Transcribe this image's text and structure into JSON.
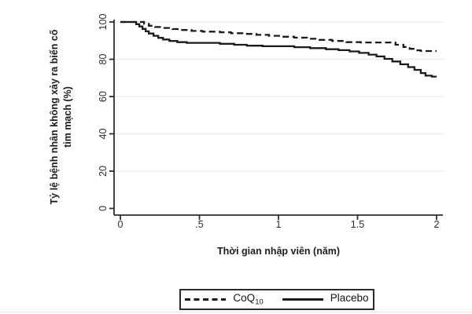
{
  "figure": {
    "y_axis_title_line1": "Tỷ lệ bệnh nhân không xảy ra biến cố",
    "y_axis_title_line2": "tim mạch (%)",
    "x_axis_title": "Thời gian nhập viên (năm)"
  },
  "legend": {
    "entries": [
      {
        "name": "coq10",
        "label_main": "CoQ",
        "label_sub": "10",
        "line_style": "dashed"
      },
      {
        "name": "placebo",
        "label_main": "Placebo",
        "label_sub": "",
        "line_style": "solid"
      }
    ]
  },
  "chart_data": {
    "type": "line",
    "subtype": "kaplan-meier-step",
    "title": "",
    "xlabel": "Thời gian nhập viên (năm)",
    "ylabel": "Tỷ lệ bệnh nhân không xảy ra biến cố tim mạch (%)",
    "xlim": [
      0,
      2.05
    ],
    "ylim": [
      0,
      100
    ],
    "x_tick_labels": [
      "0",
      ".5",
      "1",
      "1.5",
      "2"
    ],
    "x_tick_values": [
      0,
      0.5,
      1,
      1.5,
      2
    ],
    "y_tick_labels": [
      "0",
      "20",
      "40",
      "60",
      "80",
      "100"
    ],
    "y_tick_values": [
      0,
      20,
      40,
      60,
      80,
      100
    ],
    "grid": "horizontal-light",
    "legend_position": "bottom-center",
    "line_color": "#1a1a1a",
    "grid_color": "#ececec",
    "axis_color": "#2e2e2e",
    "tick_label_color": "#2b2b2b",
    "series": [
      {
        "name": "CoQ10",
        "style": "dashed",
        "points": [
          [
            0,
            100
          ],
          [
            0.13,
            100
          ],
          [
            0.15,
            99
          ],
          [
            0.18,
            98
          ],
          [
            0.22,
            97.3
          ],
          [
            0.27,
            96.8
          ],
          [
            0.33,
            96.2
          ],
          [
            0.39,
            95.7
          ],
          [
            0.45,
            95.2
          ],
          [
            0.52,
            94.8
          ],
          [
            0.63,
            94.5
          ],
          [
            0.7,
            94
          ],
          [
            0.78,
            93.6
          ],
          [
            0.86,
            93.1
          ],
          [
            0.94,
            92.6
          ],
          [
            1.02,
            92.1
          ],
          [
            1.1,
            91.6
          ],
          [
            1.18,
            91
          ],
          [
            1.26,
            90.4
          ],
          [
            1.34,
            89.8
          ],
          [
            1.43,
            89.2
          ],
          [
            1.52,
            89
          ],
          [
            1.7,
            89
          ],
          [
            1.74,
            87.8
          ],
          [
            1.79,
            86.6
          ],
          [
            1.83,
            85.6
          ],
          [
            1.87,
            84.8
          ],
          [
            1.9,
            84.4
          ],
          [
            2.0,
            84.4
          ]
        ]
      },
      {
        "name": "Placebo",
        "style": "solid",
        "points": [
          [
            0,
            100
          ],
          [
            0.08,
            100
          ],
          [
            0.1,
            98.8
          ],
          [
            0.12,
            97.6
          ],
          [
            0.14,
            96.3
          ],
          [
            0.16,
            95
          ],
          [
            0.18,
            93.8
          ],
          [
            0.21,
            92.6
          ],
          [
            0.24,
            91.5
          ],
          [
            0.27,
            90.6
          ],
          [
            0.31,
            89.8
          ],
          [
            0.36,
            89.2
          ],
          [
            0.42,
            88.8
          ],
          [
            0.58,
            88.8
          ],
          [
            0.63,
            88.3
          ],
          [
            0.72,
            87.8
          ],
          [
            0.8,
            87.3
          ],
          [
            0.9,
            87
          ],
          [
            1.05,
            87
          ],
          [
            1.1,
            86.5
          ],
          [
            1.2,
            86
          ],
          [
            1.3,
            85.4
          ],
          [
            1.38,
            84.9
          ],
          [
            1.45,
            84.2
          ],
          [
            1.51,
            83.4
          ],
          [
            1.57,
            82.5
          ],
          [
            1.62,
            81.5
          ],
          [
            1.67,
            80.2
          ],
          [
            1.72,
            78.8
          ],
          [
            1.77,
            77.3
          ],
          [
            1.82,
            75.8
          ],
          [
            1.86,
            74.3
          ],
          [
            1.9,
            72.6
          ],
          [
            1.93,
            71.2
          ],
          [
            1.97,
            70.7
          ],
          [
            2.0,
            70.7
          ]
        ]
      }
    ]
  }
}
